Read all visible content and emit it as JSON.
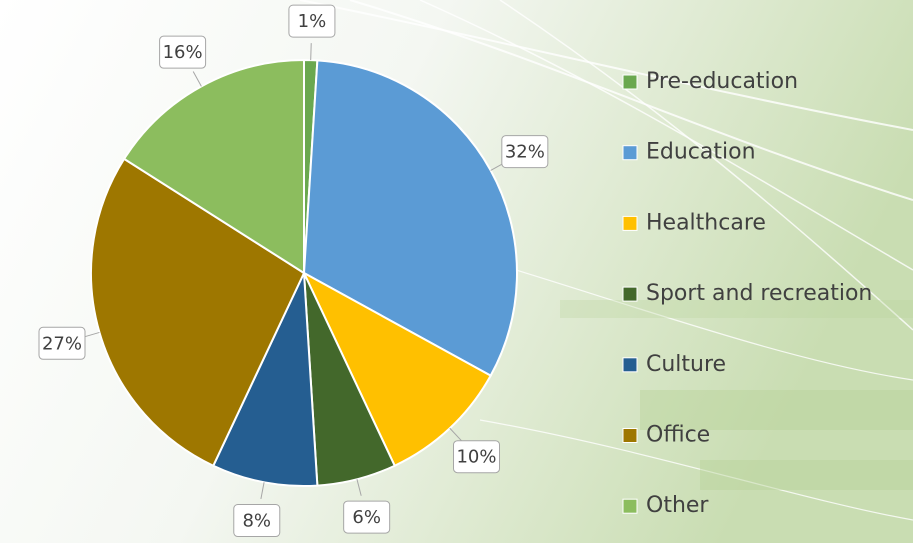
{
  "chart_data": {
    "type": "pie",
    "categories": [
      "Pre-education",
      "Education",
      "Healthcare",
      "Sport and recreation",
      "Culture",
      "Office",
      "Other"
    ],
    "values": [
      1,
      32,
      10,
      6,
      8,
      27,
      16
    ],
    "value_labels": [
      "1%",
      "32%",
      "10%",
      "6%",
      "8%",
      "27%",
      "16%"
    ],
    "colors": [
      "#6aa84f",
      "#5b9bd5",
      "#ffc000",
      "#43682b",
      "#255e91",
      "#9e7700",
      "#8cbd5e"
    ],
    "legend": "right"
  }
}
